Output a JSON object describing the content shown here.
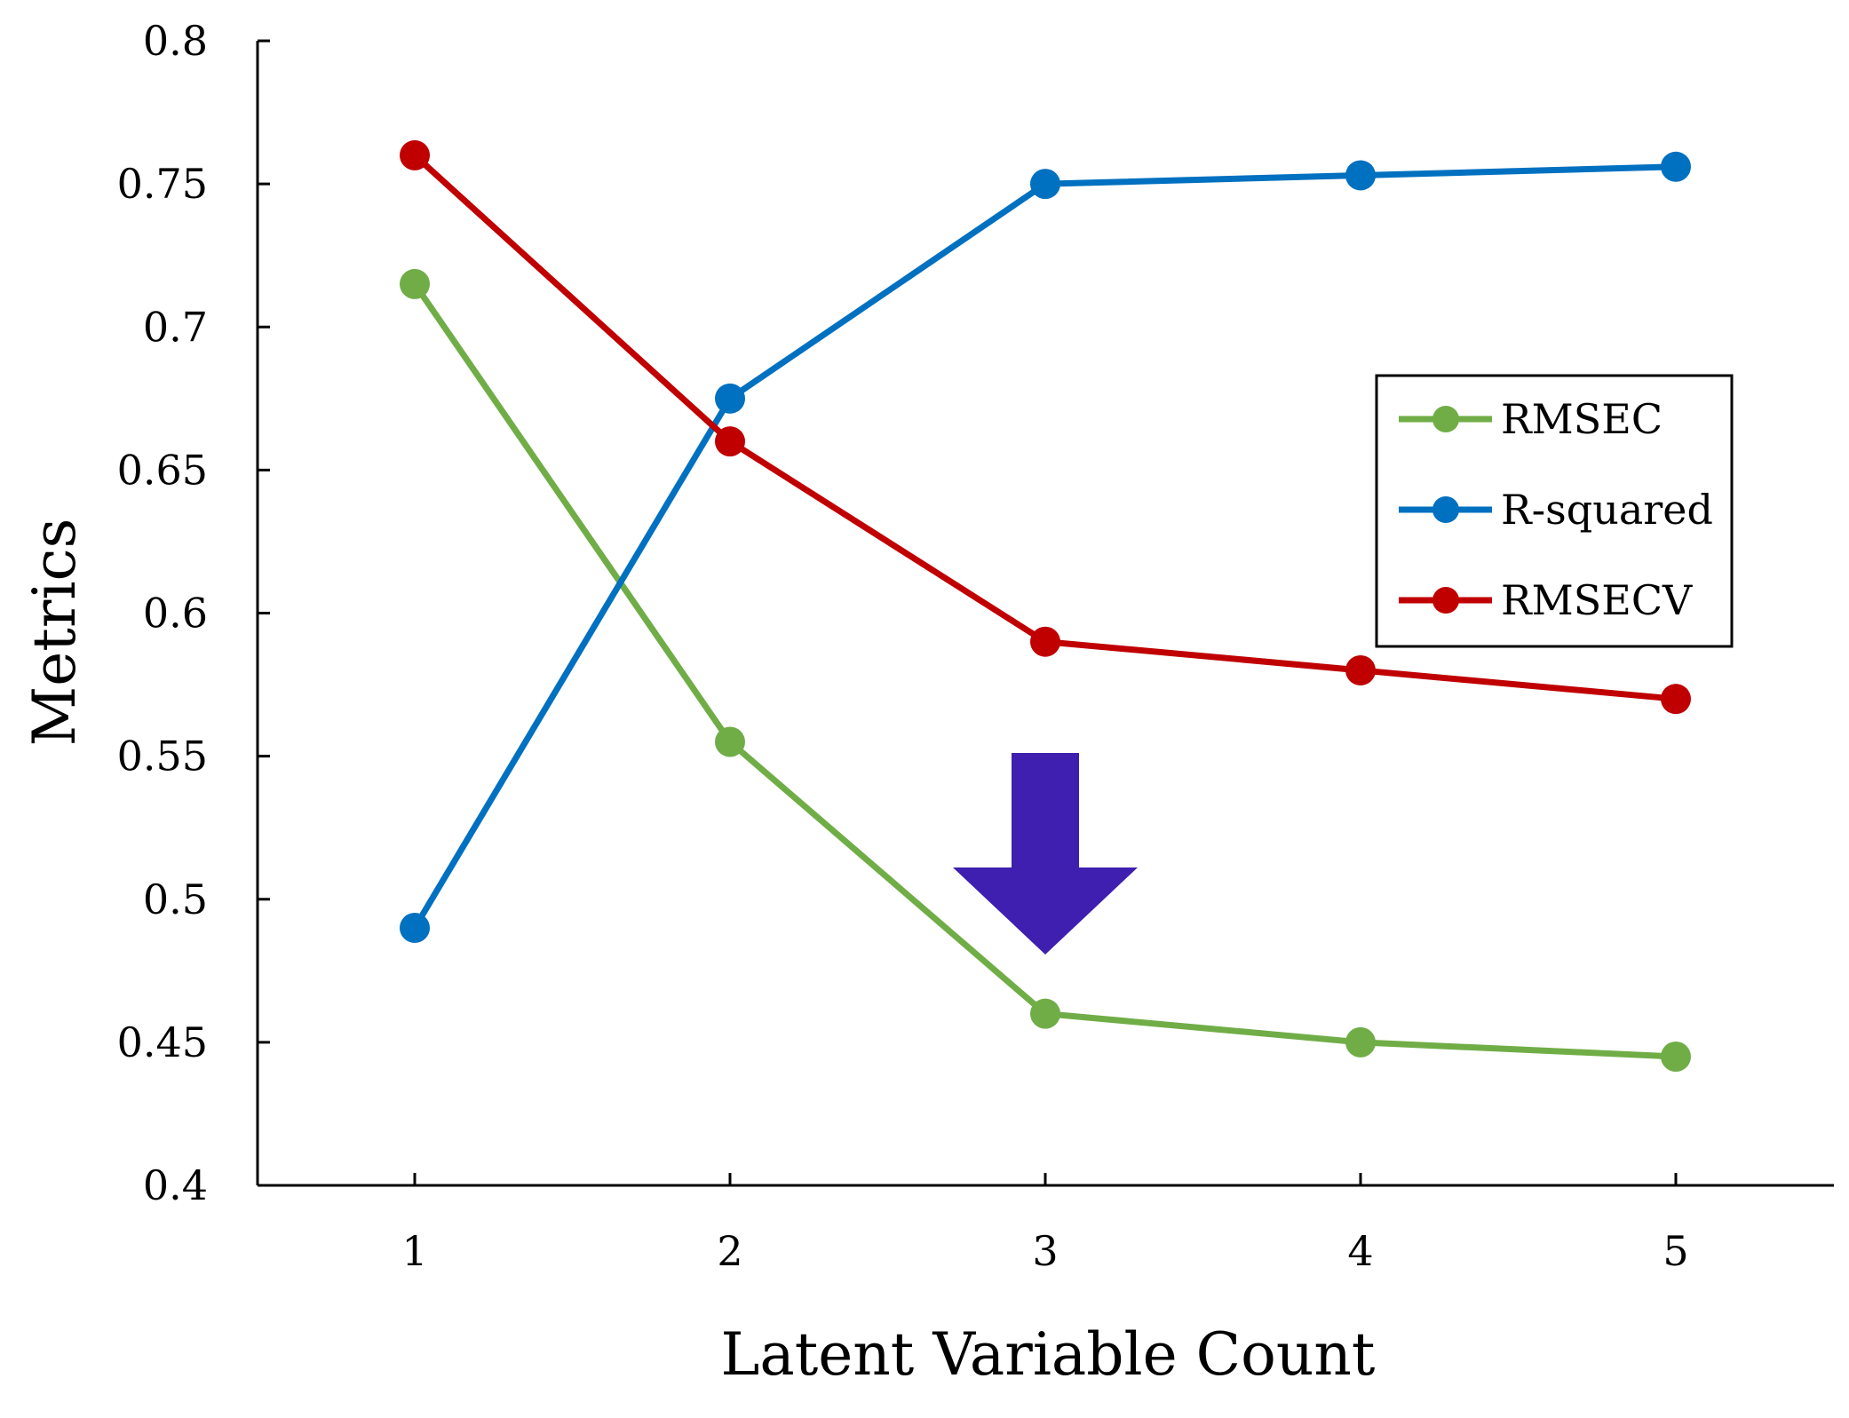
{
  "chart_data": {
    "type": "line",
    "title": "",
    "xlabel": "Latent Variable Count",
    "ylabel": "Metrics",
    "x": [
      1,
      2,
      3,
      4,
      5
    ],
    "x_tick_labels": [
      "1",
      "2",
      "3",
      "4",
      "5"
    ],
    "ylim": [
      0.4,
      0.8
    ],
    "y_tick_labels": [
      "0.4",
      "0.45",
      "0.5",
      "0.55",
      "0.6",
      "0.65",
      "0.7",
      "0.75",
      "0.8"
    ],
    "grid": false,
    "legend_position": "right",
    "series": [
      {
        "name": "RMSEC",
        "color": "#70AD47",
        "values": [
          0.715,
          0.555,
          0.46,
          0.45,
          0.445
        ]
      },
      {
        "name": "R-squared",
        "color": "#0070C0",
        "values": [
          0.49,
          0.675,
          0.75,
          0.753,
          0.756
        ]
      },
      {
        "name": "RMSECV",
        "color": "#C00000",
        "values": [
          0.76,
          0.66,
          0.59,
          0.58,
          0.57
        ]
      }
    ],
    "annotations": [
      {
        "kind": "down-arrow-icon",
        "color": "#3F1FAF",
        "x": 3,
        "pointing_to_series": "RMSEC"
      }
    ]
  }
}
